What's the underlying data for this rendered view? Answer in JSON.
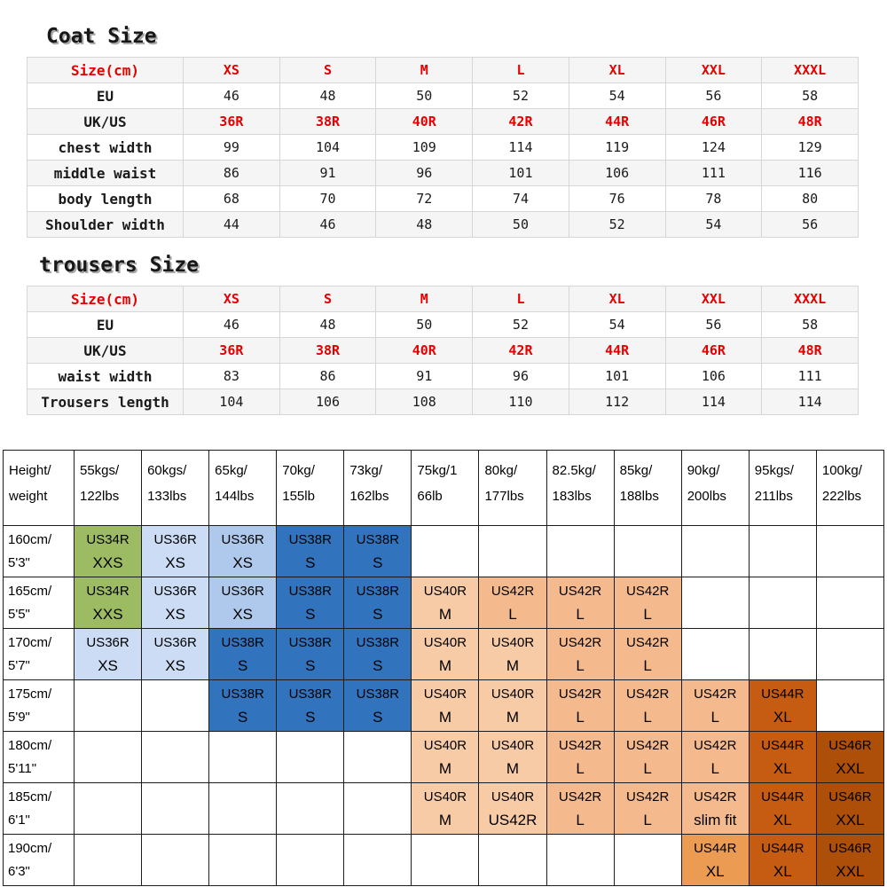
{
  "colors": {
    "red_text": "#e60000",
    "green": "#9cbb63",
    "blue_light": "#cbdcf4",
    "blue_mid": "#aec9ec",
    "blue_dark": "#3174bd",
    "peach_m": "#f7cba6",
    "peach_l": "#f4ba8e",
    "orange_light": "#ec9b52",
    "orange": "#c65c12",
    "brown": "#ad4f08"
  },
  "coat": {
    "title": "Coat Size",
    "rows": [
      {
        "label": "Size(cm)",
        "red_label": true,
        "red_values": true,
        "values": [
          "XS",
          "S",
          "M",
          "L",
          "XL",
          "XXL",
          "XXXL"
        ]
      },
      {
        "label": "EU",
        "values": [
          "46",
          "48",
          "50",
          "52",
          "54",
          "56",
          "58"
        ]
      },
      {
        "label": "UK/US",
        "red_values": true,
        "values": [
          "36R",
          "38R",
          "40R",
          "42R",
          "44R",
          "46R",
          "48R"
        ]
      },
      {
        "label": "chest width",
        "values": [
          "99",
          "104",
          "109",
          "114",
          "119",
          "124",
          "129"
        ]
      },
      {
        "label": "middle waist",
        "values": [
          "86",
          "91",
          "96",
          "101",
          "106",
          "111",
          "116"
        ]
      },
      {
        "label": "body length",
        "values": [
          "68",
          "70",
          "72",
          "74",
          "76",
          "78",
          "80"
        ]
      },
      {
        "label": "Shoulder width",
        "values": [
          "44",
          "46",
          "48",
          "50",
          "52",
          "54",
          "56"
        ]
      }
    ]
  },
  "trousers": {
    "title": "trousers Size",
    "rows": [
      {
        "label": "Size(cm)",
        "red_label": true,
        "red_values": true,
        "values": [
          "XS",
          "S",
          "M",
          "L",
          "XL",
          "XXL",
          "XXXL"
        ]
      },
      {
        "label": "EU",
        "values": [
          "46",
          "48",
          "50",
          "52",
          "54",
          "56",
          "58"
        ]
      },
      {
        "label": "UK/US",
        "red_values": true,
        "values": [
          "36R",
          "38R",
          "40R",
          "42R",
          "44R",
          "46R",
          "48R"
        ]
      },
      {
        "label": "waist width",
        "values": [
          "83",
          "86",
          "91",
          "96",
          "101",
          "106",
          "111"
        ]
      },
      {
        "label": "Trousers length",
        "values": [
          "104",
          "106",
          "108",
          "110",
          "112",
          "114",
          "114"
        ]
      }
    ]
  },
  "fit_matrix": {
    "header": [
      {
        "line1": "Height/",
        "line2": "weight"
      },
      {
        "line1": "55kgs/",
        "line2": "122lbs"
      },
      {
        "line1": "60kgs/",
        "line2": "133lbs"
      },
      {
        "line1": "65kg/",
        "line2": "144lbs"
      },
      {
        "line1": "70kg/",
        "line2": "155lb"
      },
      {
        "line1": "73kg/",
        "line2": "162lbs"
      },
      {
        "line1": "75kg/1",
        "line2": "66lb"
      },
      {
        "line1": "80kg/",
        "line2": "177lbs"
      },
      {
        "line1": "82.5kg/",
        "line2": "183lbs"
      },
      {
        "line1": "85kg/",
        "line2": "188lbs"
      },
      {
        "line1": "90kg/",
        "line2": "200lbs"
      },
      {
        "line1": "95kgs/",
        "line2": "211lbs"
      },
      {
        "line1": "100kg/",
        "line2": "222lbs"
      }
    ],
    "rows": [
      {
        "label1": "160cm/",
        "label2": "5'3\"",
        "cells": [
          {
            "line1": "US34R",
            "line2": "XXS",
            "color": "green"
          },
          {
            "line1": "US36R",
            "line2": "XS",
            "color": "blue_light"
          },
          {
            "line1": "US36R",
            "line2": "XS",
            "color": "blue_mid"
          },
          {
            "line1": "US38R",
            "line2": "S",
            "color": "blue_dark"
          },
          {
            "line1": "US38R",
            "line2": "S",
            "color": "blue_dark"
          },
          null,
          null,
          null,
          null,
          null,
          null,
          null
        ]
      },
      {
        "label1": "165cm/",
        "label2": "5'5\"",
        "cells": [
          {
            "line1": "US34R",
            "line2": "XXS",
            "color": "green"
          },
          {
            "line1": "US36R",
            "line2": "XS",
            "color": "blue_light"
          },
          {
            "line1": "US36R",
            "line2": "XS",
            "color": "blue_mid"
          },
          {
            "line1": "US38R",
            "line2": "S",
            "color": "blue_dark"
          },
          {
            "line1": "US38R",
            "line2": "S",
            "color": "blue_dark"
          },
          {
            "line1": "US40R",
            "line2": "M",
            "color": "peach_m"
          },
          {
            "line1": "US42R",
            "line2": "L",
            "color": "peach_l"
          },
          {
            "line1": "US42R",
            "line2": "L",
            "color": "peach_l"
          },
          {
            "line1": "US42R",
            "line2": "L",
            "color": "peach_l"
          },
          null,
          null,
          null
        ]
      },
      {
        "label1": "170cm/",
        "label2": "5'7\"",
        "cells": [
          {
            "line1": "US36R",
            "line2": "XS",
            "color": "blue_light"
          },
          {
            "line1": "US36R",
            "line2": "XS",
            "color": "blue_light"
          },
          {
            "line1": "US38R",
            "line2": "S",
            "color": "blue_dark"
          },
          {
            "line1": "US38R",
            "line2": "S",
            "color": "blue_dark"
          },
          {
            "line1": "US38R",
            "line2": "S",
            "color": "blue_dark"
          },
          {
            "line1": "US40R",
            "line2": "M",
            "color": "peach_m"
          },
          {
            "line1": "US40R",
            "line2": "M",
            "color": "peach_m"
          },
          {
            "line1": "US42R",
            "line2": "L",
            "color": "peach_l"
          },
          {
            "line1": "US42R",
            "line2": "L",
            "color": "peach_l"
          },
          null,
          null,
          null
        ]
      },
      {
        "label1": "175cm/",
        "label2": "5'9\"",
        "cells": [
          null,
          null,
          {
            "line1": "US38R",
            "line2": "S",
            "color": "blue_dark"
          },
          {
            "line1": "US38R",
            "line2": "S",
            "color": "blue_dark"
          },
          {
            "line1": "US38R",
            "line2": "S",
            "color": "blue_dark"
          },
          {
            "line1": "US40R",
            "line2": "M",
            "color": "peach_m"
          },
          {
            "line1": "US40R",
            "line2": "M",
            "color": "peach_m"
          },
          {
            "line1": "US42R",
            "line2": "L",
            "color": "peach_l"
          },
          {
            "line1": "US42R",
            "line2": "L",
            "color": "peach_l"
          },
          {
            "line1": "US42R",
            "line2": "L",
            "color": "peach_l"
          },
          {
            "line1": "US44R",
            "line2": "XL",
            "color": "orange"
          },
          null
        ]
      },
      {
        "label1": "180cm/",
        "label2": "5'11\"",
        "cells": [
          null,
          null,
          null,
          null,
          null,
          {
            "line1": "US40R",
            "line2": "M",
            "color": "peach_m"
          },
          {
            "line1": "US40R",
            "line2": "M",
            "color": "peach_m"
          },
          {
            "line1": "US42R",
            "line2": "L",
            "color": "peach_l"
          },
          {
            "line1": "US42R",
            "line2": "L",
            "color": "peach_l"
          },
          {
            "line1": "US42R",
            "line2": "L",
            "color": "peach_l"
          },
          {
            "line1": "US44R",
            "line2": "XL",
            "color": "orange"
          },
          {
            "line1": "US46R",
            "line2": "XXL",
            "color": "brown"
          }
        ]
      },
      {
        "label1": "185cm/",
        "label2": "6'1\"",
        "cells": [
          null,
          null,
          null,
          null,
          null,
          {
            "line1": "US40R",
            "line2": "M",
            "color": "peach_m"
          },
          {
            "line1": "US40R",
            "line2": "US42R",
            "color": "peach_m"
          },
          {
            "line1": "US42R",
            "line2": "L",
            "color": "peach_l"
          },
          {
            "line1": "US42R",
            "line2": "L",
            "color": "peach_l"
          },
          {
            "line1": "US42R",
            "line2": "slim fit",
            "color": "peach_l"
          },
          {
            "line1": "US44R",
            "line2": "XL",
            "color": "orange"
          },
          {
            "line1": "US46R",
            "line2": "XXL",
            "color": "brown"
          }
        ]
      },
      {
        "label1": "190cm/",
        "label2": "6'3\"",
        "cells": [
          null,
          null,
          null,
          null,
          null,
          null,
          null,
          null,
          null,
          {
            "line1": "US44R",
            "line2": "XL",
            "color": "orange_light"
          },
          {
            "line1": "US44R",
            "line2": "XL",
            "color": "orange"
          },
          {
            "line1": "US46R",
            "line2": "XXL",
            "color": "brown"
          }
        ]
      }
    ]
  }
}
